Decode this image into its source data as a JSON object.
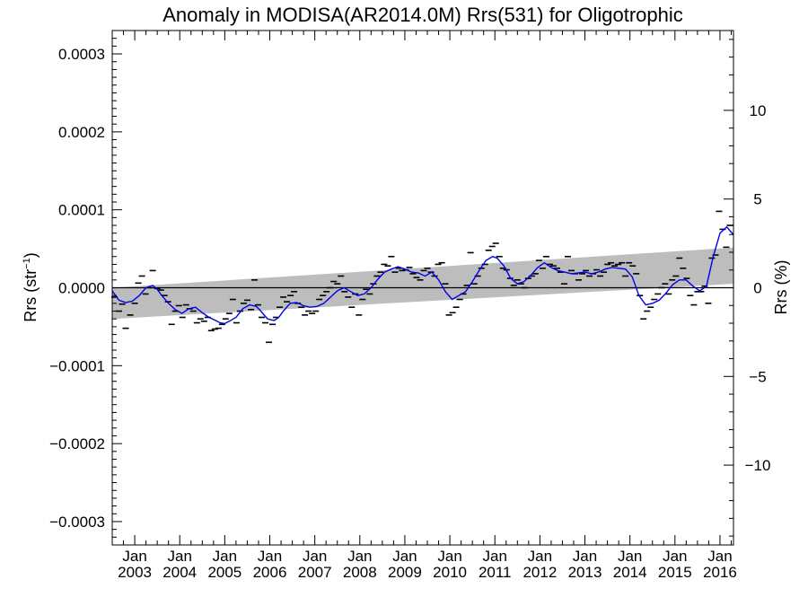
{
  "chart_data": {
    "type": "line",
    "title": "Anomaly in MODISA(AR2014.0M) Rrs(531) for Oligotrophic",
    "ylabel_left": "Rrs (str⁻¹)",
    "ylabel_left_base": "Rrs (str",
    "ylabel_left_sup": "−1",
    "ylabel_left_close": ")",
    "ylabel_right": "Rrs (%)",
    "xlim": [
      2002.5,
      2016.3
    ],
    "ylim": [
      -0.00033,
      0.00033
    ],
    "ylim_right": [
      -14.5,
      14.5
    ],
    "left_ticks": [
      {
        "v": 0.0003,
        "label": "0.0003"
      },
      {
        "v": 0.0002,
        "label": "0.0002"
      },
      {
        "v": 0.0001,
        "label": "0.0001"
      },
      {
        "v": 0.0,
        "label": "0.0000"
      },
      {
        "v": -0.0001,
        "label": "−0.0001"
      },
      {
        "v": -0.0002,
        "label": "−0.0002"
      },
      {
        "v": -0.0003,
        "label": "−0.0003"
      }
    ],
    "right_ticks": [
      {
        "v": 10,
        "label": "10"
      },
      {
        "v": 5,
        "label": "5"
      },
      {
        "v": 0,
        "label": "0"
      },
      {
        "v": -5,
        "label": "−5"
      },
      {
        "v": -10,
        "label": "−10"
      }
    ],
    "x_ticks": [
      {
        "year": 2003,
        "month": "Jan",
        "year_label": "2003"
      },
      {
        "year": 2004,
        "month": "Jan",
        "year_label": "2004"
      },
      {
        "year": 2005,
        "month": "Jan",
        "year_label": "2005"
      },
      {
        "year": 2006,
        "month": "Jan",
        "year_label": "2006"
      },
      {
        "year": 2007,
        "month": "Jan",
        "year_label": "2007"
      },
      {
        "year": 2008,
        "month": "Jan",
        "year_label": "2008"
      },
      {
        "year": 2009,
        "month": "Jan",
        "year_label": "2009"
      },
      {
        "year": 2010,
        "month": "Jan",
        "year_label": "2010"
      },
      {
        "year": 2011,
        "month": "Jan",
        "year_label": "2011"
      },
      {
        "year": 2012,
        "month": "Jan",
        "year_label": "2012"
      },
      {
        "year": 2013,
        "month": "Jan",
        "year_label": "2013"
      },
      {
        "year": 2014,
        "month": "Jan",
        "year_label": "2014"
      },
      {
        "year": 2015,
        "month": "Jan",
        "year_label": "2015"
      },
      {
        "year": 2016,
        "month": "Jan",
        "year_label": "2016"
      }
    ],
    "trend_band": {
      "x": [
        2002.5,
        2016.3
      ],
      "upper": [
        0.0,
        5.15e-05
      ],
      "lower": [
        -4e-05,
        5e-06
      ]
    },
    "zero_line": 0.0,
    "series": [
      {
        "style": "smoothed",
        "color": "#0000ee",
        "x": [
          2002.5,
          2002.65,
          2002.8,
          2002.95,
          2003.1,
          2003.25,
          2003.4,
          2003.5,
          2003.6,
          2003.75,
          2003.9,
          2004.05,
          2004.2,
          2004.35,
          2004.5,
          2004.65,
          2004.8,
          2004.9,
          2005.0,
          2005.1,
          2005.25,
          2005.4,
          2005.55,
          2005.7,
          2005.8,
          2005.95,
          2006.1,
          2006.2,
          2006.3,
          2006.45,
          2006.6,
          2006.75,
          2006.9,
          2007.05,
          2007.2,
          2007.35,
          2007.5,
          2007.65,
          2007.8,
          2007.95,
          2008.1,
          2008.25,
          2008.4,
          2008.55,
          2008.7,
          2008.85,
          2009.0,
          2009.15,
          2009.3,
          2009.45,
          2009.6,
          2009.75,
          2009.9,
          2010.05,
          2010.2,
          2010.35,
          2010.5,
          2010.65,
          2010.8,
          2010.95,
          2011.05,
          2011.2,
          2011.35,
          2011.5,
          2011.65,
          2011.8,
          2011.95,
          2012.1,
          2012.25,
          2012.4,
          2012.55,
          2012.7,
          2012.85,
          2013.0,
          2013.15,
          2013.3,
          2013.45,
          2013.6,
          2013.75,
          2013.9,
          2014.05,
          2014.2,
          2014.35,
          2014.5,
          2014.65,
          2014.8,
          2014.95,
          2015.1,
          2015.25,
          2015.4,
          2015.55,
          2015.7,
          2015.85,
          2016.0,
          2016.15,
          2016.3
        ],
        "y": [
          -4e-06,
          -1.6e-05,
          -1.9e-05,
          -1.7e-05,
          -1e-05,
          0.0,
          3e-06,
          -2e-06,
          -1e-05,
          -2e-05,
          -2.8e-05,
          -3.3e-05,
          -2.7e-05,
          -2.5e-05,
          -3.2e-05,
          -3.8e-05,
          -4.2e-05,
          -4.5e-05,
          -4.6e-05,
          -4.3e-05,
          -3.8e-05,
          -2.7e-05,
          -2.2e-05,
          -2.4e-05,
          -3e-05,
          -4e-05,
          -4.2e-05,
          -3.8e-05,
          -3e-05,
          -2e-05,
          -1.9e-05,
          -2.3e-05,
          -2.5e-05,
          -2.4e-05,
          -2e-05,
          -1.2e-05,
          -4e-06,
          0.0,
          -5e-06,
          -1e-05,
          -8e-06,
          0.0,
          1.1e-05,
          2e-05,
          2.4e-05,
          2.7e-05,
          2.4e-05,
          2e-05,
          1.9e-05,
          1.5e-05,
          2e-05,
          1e-05,
          -5e-06,
          -1.5e-05,
          -1e-05,
          -5e-06,
          8e-06,
          2.2e-05,
          3.5e-05,
          4e-05,
          3.8e-05,
          2.8e-05,
          1.2e-05,
          5e-06,
          8e-06,
          1.6e-05,
          2.6e-05,
          3.2e-05,
          2.6e-05,
          2.2e-05,
          2e-05,
          1.8e-05,
          1.9e-05,
          2e-05,
          1.8e-05,
          2e-05,
          2.4e-05,
          2.6e-05,
          2.5e-05,
          2.4e-05,
          1.4e-05,
          -1e-05,
          -2.2e-05,
          -2e-05,
          -1.6e-05,
          -7e-06,
          4e-06,
          1e-05,
          1e-05,
          2e-06,
          -4e-06,
          2e-06,
          4e-05,
          7e-05,
          7.8e-05,
          6.8e-05
        ]
      }
    ],
    "points": [
      {
        "x": 2002.55,
        "y": -1.2e-05
      },
      {
        "x": 2002.65,
        "y": -3e-05
      },
      {
        "x": 2002.72,
        "y": -2.1e-05
      },
      {
        "x": 2002.8,
        "y": -5.2e-05
      },
      {
        "x": 2002.9,
        "y": -3.5e-05
      },
      {
        "x": 2003.0,
        "y": -2e-05
      },
      {
        "x": 2003.08,
        "y": 6e-06
      },
      {
        "x": 2003.16,
        "y": 1.5e-05
      },
      {
        "x": 2003.24,
        "y": -8e-06
      },
      {
        "x": 2003.32,
        "y": 0.0
      },
      {
        "x": 2003.4,
        "y": 2.2e-05
      },
      {
        "x": 2003.5,
        "y": -1e-06
      },
      {
        "x": 2003.58,
        "y": -3e-06
      },
      {
        "x": 2003.66,
        "y": -1e-05
      },
      {
        "x": 2003.74,
        "y": -1.8e-05
      },
      {
        "x": 2003.82,
        "y": -4.7e-05
      },
      {
        "x": 2003.9,
        "y": -3e-05
      },
      {
        "x": 2003.98,
        "y": -2.3e-05
      },
      {
        "x": 2004.06,
        "y": -3.8e-05
      },
      {
        "x": 2004.14,
        "y": -2.2e-05
      },
      {
        "x": 2004.22,
        "y": -2.7e-05
      },
      {
        "x": 2004.3,
        "y": -3e-05
      },
      {
        "x": 2004.38,
        "y": -4.5e-05
      },
      {
        "x": 2004.46,
        "y": -4e-05
      },
      {
        "x": 2004.54,
        "y": -4.3e-05
      },
      {
        "x": 2004.62,
        "y": -3.8e-05
      },
      {
        "x": 2004.7,
        "y": -5.5e-05
      },
      {
        "x": 2004.78,
        "y": -5.3e-05
      },
      {
        "x": 2004.86,
        "y": -5.2e-05
      },
      {
        "x": 2004.94,
        "y": -4.7e-05
      },
      {
        "x": 2005.02,
        "y": -4e-05
      },
      {
        "x": 2005.1,
        "y": -3.3e-05
      },
      {
        "x": 2005.18,
        "y": -1.5e-05
      },
      {
        "x": 2005.26,
        "y": -4.5e-05
      },
      {
        "x": 2005.34,
        "y": -3e-05
      },
      {
        "x": 2005.42,
        "y": -2e-05
      },
      {
        "x": 2005.5,
        "y": -1.6e-05
      },
      {
        "x": 2005.58,
        "y": -2.8e-05
      },
      {
        "x": 2005.66,
        "y": 1e-05
      },
      {
        "x": 2005.74,
        "y": -2.2e-05
      },
      {
        "x": 2005.82,
        "y": -3.8e-05
      },
      {
        "x": 2005.9,
        "y": -4.5e-05
      },
      {
        "x": 2005.98,
        "y": -7e-05
      },
      {
        "x": 2006.06,
        "y": -4.7e-05
      },
      {
        "x": 2006.14,
        "y": -3.8e-05
      },
      {
        "x": 2006.22,
        "y": -2.5e-05
      },
      {
        "x": 2006.3,
        "y": -1.2e-05
      },
      {
        "x": 2006.38,
        "y": -1.8e-05
      },
      {
        "x": 2006.46,
        "y": -1e-05
      },
      {
        "x": 2006.54,
        "y": -5e-06
      },
      {
        "x": 2006.62,
        "y": -2e-05
      },
      {
        "x": 2006.7,
        "y": -2.5e-05
      },
      {
        "x": 2006.78,
        "y": -3.5e-05
      },
      {
        "x": 2006.86,
        "y": -3e-05
      },
      {
        "x": 2006.94,
        "y": -3.3e-05
      },
      {
        "x": 2007.02,
        "y": -3e-05
      },
      {
        "x": 2007.1,
        "y": -1.5e-05
      },
      {
        "x": 2007.18,
        "y": -1e-05
      },
      {
        "x": 2007.26,
        "y": -5e-06
      },
      {
        "x": 2007.34,
        "y": 0.0
      },
      {
        "x": 2007.42,
        "y": 8e-06
      },
      {
        "x": 2007.5,
        "y": 5e-06
      },
      {
        "x": 2007.58,
        "y": 1.5e-05
      },
      {
        "x": 2007.66,
        "y": -5e-06
      },
      {
        "x": 2007.74,
        "y": -1.2e-05
      },
      {
        "x": 2007.82,
        "y": -2.5e-05
      },
      {
        "x": 2007.9,
        "y": -8e-06
      },
      {
        "x": 2007.98,
        "y": -3.5e-05
      },
      {
        "x": 2008.06,
        "y": -1.5e-05
      },
      {
        "x": 2008.14,
        "y": -2e-06
      },
      {
        "x": 2008.22,
        "y": -8e-06
      },
      {
        "x": 2008.3,
        "y": 5e-06
      },
      {
        "x": 2008.38,
        "y": 1.5e-05
      },
      {
        "x": 2008.46,
        "y": 2e-05
      },
      {
        "x": 2008.54,
        "y": 3e-05
      },
      {
        "x": 2008.62,
        "y": 2.8e-05
      },
      {
        "x": 2008.7,
        "y": 4e-05
      },
      {
        "x": 2008.78,
        "y": 2e-05
      },
      {
        "x": 2008.86,
        "y": 2.5e-05
      },
      {
        "x": 2008.94,
        "y": 2.2e-05
      },
      {
        "x": 2009.02,
        "y": 2.3e-05
      },
      {
        "x": 2009.1,
        "y": 2.6e-05
      },
      {
        "x": 2009.18,
        "y": 1.8e-05
      },
      {
        "x": 2009.26,
        "y": 1.3e-05
      },
      {
        "x": 2009.34,
        "y": 1e-05
      },
      {
        "x": 2009.42,
        "y": 2.2e-05
      },
      {
        "x": 2009.5,
        "y": 2.5e-05
      },
      {
        "x": 2009.58,
        "y": 2e-05
      },
      {
        "x": 2009.66,
        "y": 1.5e-05
      },
      {
        "x": 2009.74,
        "y": 3e-05
      },
      {
        "x": 2009.82,
        "y": 3.2e-05
      },
      {
        "x": 2009.9,
        "y": 5e-06
      },
      {
        "x": 2009.98,
        "y": -3.5e-05
      },
      {
        "x": 2010.06,
        "y": -3.2e-05
      },
      {
        "x": 2010.14,
        "y": -2.5e-05
      },
      {
        "x": 2010.22,
        "y": -1.5e-05
      },
      {
        "x": 2010.3,
        "y": -8e-06
      },
      {
        "x": 2010.38,
        "y": 3e-06
      },
      {
        "x": 2010.46,
        "y": 4.5e-05
      },
      {
        "x": 2010.54,
        "y": 5e-06
      },
      {
        "x": 2010.62,
        "y": 1.5e-05
      },
      {
        "x": 2010.7,
        "y": 2.5e-05
      },
      {
        "x": 2010.78,
        "y": 3e-05
      },
      {
        "x": 2010.86,
        "y": 4.8e-05
      },
      {
        "x": 2010.94,
        "y": 5.3e-05
      },
      {
        "x": 2011.02,
        "y": 5.7e-05
      },
      {
        "x": 2011.1,
        "y": 4e-05
      },
      {
        "x": 2011.18,
        "y": 2.5e-05
      },
      {
        "x": 2011.26,
        "y": 2.3e-05
      },
      {
        "x": 2011.34,
        "y": 1.2e-05
      },
      {
        "x": 2011.42,
        "y": 3e-06
      },
      {
        "x": 2011.5,
        "y": 1e-05
      },
      {
        "x": 2011.58,
        "y": 5e-06
      },
      {
        "x": 2011.66,
        "y": 0.0
      },
      {
        "x": 2011.74,
        "y": 1.2e-05
      },
      {
        "x": 2011.82,
        "y": 1.5e-05
      },
      {
        "x": 2011.9,
        "y": 1.8e-05
      },
      {
        "x": 2011.98,
        "y": 3.5e-05
      },
      {
        "x": 2012.06,
        "y": 2.5e-05
      },
      {
        "x": 2012.14,
        "y": 4e-05
      },
      {
        "x": 2012.22,
        "y": 3e-05
      },
      {
        "x": 2012.3,
        "y": 2.8e-05
      },
      {
        "x": 2012.38,
        "y": 2.5e-05
      },
      {
        "x": 2012.46,
        "y": 2e-05
      },
      {
        "x": 2012.54,
        "y": 5e-06
      },
      {
        "x": 2012.62,
        "y": 4e-05
      },
      {
        "x": 2012.7,
        "y": 2.2e-05
      },
      {
        "x": 2012.78,
        "y": 1.8e-05
      },
      {
        "x": 2012.86,
        "y": 1e-05
      },
      {
        "x": 2012.94,
        "y": 1.8e-05
      },
      {
        "x": 2013.02,
        "y": 2.2e-05
      },
      {
        "x": 2013.1,
        "y": 1.5e-05
      },
      {
        "x": 2013.18,
        "y": 1.8e-05
      },
      {
        "x": 2013.26,
        "y": 2.3e-05
      },
      {
        "x": 2013.34,
        "y": 1.5e-05
      },
      {
        "x": 2013.42,
        "y": 2e-05
      },
      {
        "x": 2013.5,
        "y": 3e-05
      },
      {
        "x": 2013.58,
        "y": 3.2e-05
      },
      {
        "x": 2013.66,
        "y": 2.8e-05
      },
      {
        "x": 2013.74,
        "y": 3e-05
      },
      {
        "x": 2013.82,
        "y": 3.2e-05
      },
      {
        "x": 2013.9,
        "y": 1.5e-05
      },
      {
        "x": 2013.98,
        "y": 3.2e-05
      },
      {
        "x": 2014.06,
        "y": 2.8e-05
      },
      {
        "x": 2014.14,
        "y": 1.8e-05
      },
      {
        "x": 2014.22,
        "y": -1e-05
      },
      {
        "x": 2014.3,
        "y": -4e-05
      },
      {
        "x": 2014.38,
        "y": -3e-05
      },
      {
        "x": 2014.46,
        "y": -2.5e-05
      },
      {
        "x": 2014.54,
        "y": -1.5e-05
      },
      {
        "x": 2014.62,
        "y": -8e-06
      },
      {
        "x": 2014.7,
        "y": 0.0
      },
      {
        "x": 2014.78,
        "y": 5e-06
      },
      {
        "x": 2014.86,
        "y": -8e-06
      },
      {
        "x": 2014.94,
        "y": 1e-05
      },
      {
        "x": 2015.02,
        "y": 1.5e-05
      },
      {
        "x": 2015.1,
        "y": 3.8e-05
      },
      {
        "x": 2015.18,
        "y": 2.5e-05
      },
      {
        "x": 2015.26,
        "y": 1.2e-05
      },
      {
        "x": 2015.34,
        "y": -1e-05
      },
      {
        "x": 2015.42,
        "y": -2.2e-05
      },
      {
        "x": 2015.5,
        "y": -5e-06
      },
      {
        "x": 2015.58,
        "y": -5e-06
      },
      {
        "x": 2015.66,
        "y": 2e-06
      },
      {
        "x": 2015.74,
        "y": -2e-05
      },
      {
        "x": 2015.82,
        "y": 3.8e-05
      },
      {
        "x": 2015.9,
        "y": 4.2e-05
      },
      {
        "x": 2015.98,
        "y": 9.8e-05
      },
      {
        "x": 2016.06,
        "y": 7.5e-05
      },
      {
        "x": 2016.14,
        "y": 5.2e-05
      },
      {
        "x": 2016.22,
        "y": 8e-05
      }
    ],
    "grid": false,
    "legend": "none"
  }
}
